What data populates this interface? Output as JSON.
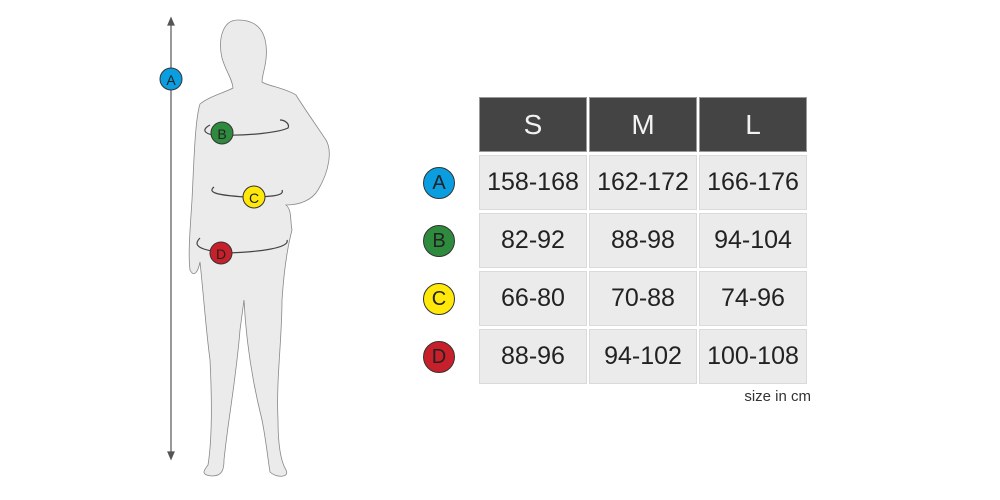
{
  "table": {
    "headers": [
      "S",
      "M",
      "L"
    ],
    "rows": [
      {
        "label": "A",
        "color": "#0a9ee0",
        "values": [
          "158-168",
          "162-172",
          "166-176"
        ]
      },
      {
        "label": "B",
        "color": "#2e8b3e",
        "values": [
          "82-92",
          "88-98",
          "94-104"
        ]
      },
      {
        "label": "C",
        "color": "#ffe80a",
        "values": [
          "66-80",
          "70-88",
          "74-96"
        ]
      },
      {
        "label": "D",
        "color": "#c8202a",
        "values": [
          "88-96",
          "94-102",
          "100-108"
        ]
      }
    ]
  },
  "note": "size in cm",
  "figure": {
    "markers": [
      "A",
      "B",
      "C",
      "D"
    ]
  }
}
